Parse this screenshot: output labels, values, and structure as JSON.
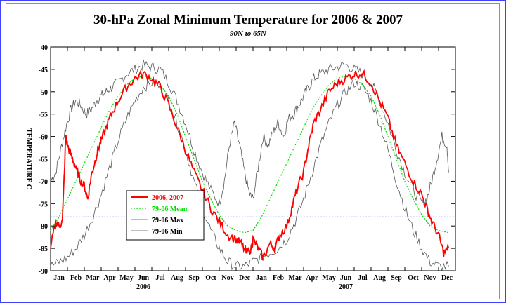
{
  "chart_data": {
    "type": "line",
    "title": "30-hPa Zonal Minimum Temperature for 2006 & 2007",
    "subtitle": "90N to 65N",
    "ylabel": "TEMPERATURE C",
    "xlabel": "",
    "ylim": [
      -90,
      -40
    ],
    "yticks": [
      -40,
      -45,
      -50,
      -55,
      -60,
      -65,
      -70,
      -75,
      -80,
      -85,
      -90
    ],
    "ytick_labels": [
      "-40",
      "-45",
      "-50",
      "-55",
      "-60",
      "-65",
      "-70",
      "-75",
      "-80",
      "-85",
      "-90"
    ],
    "xlim": [
      0,
      24
    ],
    "month_labels": [
      "Jan",
      "Feb",
      "Mar",
      "Apr",
      "May",
      "Jun",
      "Jul",
      "Aug",
      "Sep",
      "Oct",
      "Nov",
      "Dec",
      "Jan",
      "Feb",
      "Mar",
      "Apr",
      "May",
      "Jun",
      "Jul",
      "Aug",
      "Sep",
      "Oct",
      "Nov",
      "Dec"
    ],
    "year_labels": [
      {
        "text": "2006",
        "month_index": 5.5
      },
      {
        "text": "2007",
        "month_index": 17.5
      }
    ],
    "reference_line": {
      "y": -78,
      "color": "#0000ff",
      "style": "dotted"
    },
    "grid": false,
    "legend": {
      "placement": "left-center",
      "entries": [
        {
          "label": "2006, 2007",
          "color": "#ff0000",
          "style": "solid"
        },
        {
          "label": "79-06 Mean",
          "color": "#00dd00",
          "style": "dotted"
        },
        {
          "label": "79-06 Max",
          "color": "#555555",
          "style": "solid"
        },
        {
          "label": "79-06 Min",
          "color": "#555555",
          "style": "solid"
        }
      ]
    },
    "series": [
      {
        "name": "2006, 2007",
        "color": "#ff0000",
        "x": [
          0,
          0.3,
          0.5,
          0.7,
          0.9,
          1.0,
          1.2,
          1.4,
          1.6,
          1.8,
          2.0,
          2.2,
          2.4,
          2.6,
          2.8,
          3.0,
          3.3,
          3.6,
          4.0,
          4.5,
          5.0,
          5.5,
          6.0,
          6.5,
          7.0,
          7.5,
          8.0,
          8.5,
          9.0,
          9.5,
          10.0,
          10.5,
          11.0,
          11.3,
          11.6,
          11.9,
          12.0,
          12.3,
          12.6,
          13.0,
          13.3,
          13.6,
          14.0,
          14.3,
          14.6,
          15.0,
          15.3,
          15.6,
          16.0,
          16.5,
          17.0,
          17.5,
          18.0,
          18.5,
          19.0,
          19.5,
          20.0,
          20.5,
          21.0,
          21.5,
          22.0,
          22.3,
          22.6,
          23.0,
          23.3,
          23.6
        ],
        "y": [
          -85,
          -79,
          -80,
          -79,
          -60,
          -62,
          -64,
          -66,
          -68,
          -70,
          -71,
          -74,
          -69,
          -66,
          -63,
          -61,
          -58,
          -55,
          -52,
          -49,
          -47,
          -46,
          -47,
          -49,
          -53,
          -58,
          -63,
          -68,
          -72,
          -76,
          -79,
          -82,
          -83,
          -84,
          -86,
          -85,
          -83,
          -85,
          -87,
          -84,
          -85,
          -82,
          -80,
          -76,
          -72,
          -68,
          -62,
          -57,
          -54,
          -50,
          -48,
          -47,
          -46,
          -46,
          -48,
          -52,
          -56,
          -62,
          -66,
          -70,
          -73,
          -76,
          -79,
          -82,
          -86,
          -85
        ]
      },
      {
        "name": "79-06 Mean",
        "color": "#00dd00",
        "x": [
          0,
          0.5,
          1.0,
          1.5,
          2.0,
          2.5,
          3.0,
          3.5,
          4.0,
          4.5,
          5.0,
          5.5,
          6.0,
          6.5,
          7.0,
          7.5,
          8.0,
          8.5,
          9.0,
          9.5,
          10.0,
          10.5,
          11.0,
          11.5,
          12.0,
          12.5,
          13.0,
          13.5,
          14.0,
          14.5,
          15.0,
          15.5,
          16.0,
          16.5,
          17.0,
          17.5,
          18.0,
          18.5,
          19.0,
          19.5,
          20.0,
          20.5,
          21.0,
          21.5,
          22.0,
          22.5,
          23.0,
          23.6
        ],
        "y": [
          -81,
          -78,
          -74,
          -70,
          -66,
          -62,
          -58,
          -54,
          -51,
          -48.5,
          -47,
          -46.5,
          -47,
          -48.5,
          -51,
          -55,
          -60,
          -65,
          -70,
          -74,
          -77.5,
          -80,
          -81,
          -81.5,
          -81,
          -78,
          -74,
          -70,
          -66,
          -62,
          -58,
          -54,
          -51,
          -48.5,
          -47,
          -46.5,
          -47,
          -48.5,
          -51,
          -55,
          -60,
          -65,
          -70,
          -74,
          -77.5,
          -80,
          -81,
          -81.5
        ]
      },
      {
        "name": "79-06 Max",
        "color": "#555555",
        "x": [
          0,
          0.3,
          0.6,
          0.9,
          1.2,
          1.5,
          1.8,
          2.1,
          2.4,
          2.7,
          3.0,
          3.3,
          3.6,
          4.0,
          4.5,
          5.0,
          5.5,
          6.0,
          6.5,
          7.0,
          7.5,
          8.0,
          8.5,
          9.0,
          9.5,
          10.0,
          10.3,
          10.6,
          10.9,
          11.2,
          11.5,
          11.8,
          12.0,
          12.3,
          12.6,
          12.9,
          13.2,
          13.5,
          13.8,
          14.1,
          14.4,
          14.7,
          15.0,
          15.3,
          15.6,
          16.0,
          16.5,
          17.0,
          17.5,
          18.0,
          18.5,
          19.0,
          19.5,
          20.0,
          20.5,
          21.0,
          21.5,
          22.0,
          22.3,
          22.6,
          22.9,
          23.2,
          23.5,
          23.6
        ],
        "y": [
          -70,
          -68,
          -63,
          -58,
          -54,
          -52,
          -53,
          -55,
          -54,
          -52,
          -51,
          -50,
          -49,
          -48,
          -46,
          -45,
          -44,
          -44.5,
          -45,
          -48,
          -52,
          -57,
          -63,
          -68,
          -72,
          -75,
          -70,
          -62,
          -57,
          -62,
          -68,
          -73,
          -74,
          -67,
          -60,
          -62,
          -59,
          -57,
          -60,
          -56,
          -55,
          -53,
          -51,
          -49,
          -47,
          -46,
          -45,
          -44.5,
          -44,
          -45,
          -46,
          -48,
          -52,
          -57,
          -63,
          -68,
          -72,
          -75,
          -74,
          -70,
          -65,
          -60,
          -62,
          -68
        ]
      },
      {
        "name": "79-06 Min",
        "color": "#555555",
        "x": [
          0,
          0.5,
          1.0,
          1.5,
          2.0,
          2.5,
          3.0,
          3.5,
          4.0,
          4.5,
          5.0,
          5.5,
          6.0,
          6.5,
          7.0,
          7.5,
          8.0,
          8.5,
          9.0,
          9.5,
          10.0,
          10.5,
          11.0,
          11.5,
          12.0,
          12.5,
          13.0,
          13.5,
          14.0,
          14.5,
          15.0,
          15.5,
          16.0,
          16.5,
          17.0,
          17.5,
          18.0,
          18.5,
          19.0,
          19.5,
          20.0,
          20.5,
          21.0,
          21.5,
          22.0,
          22.5,
          23.0,
          23.6
        ],
        "y": [
          -89,
          -88,
          -87,
          -85,
          -82,
          -78,
          -73,
          -67,
          -61,
          -56,
          -52,
          -49,
          -48,
          -49,
          -52,
          -57,
          -63,
          -70,
          -76,
          -81,
          -85,
          -88,
          -89,
          -89,
          -88,
          -87,
          -86,
          -85,
          -83,
          -79,
          -74,
          -68,
          -62,
          -57,
          -53,
          -50,
          -48,
          -49,
          -52,
          -57,
          -63,
          -70,
          -76,
          -81,
          -85,
          -88,
          -89,
          -89
        ]
      }
    ]
  }
}
